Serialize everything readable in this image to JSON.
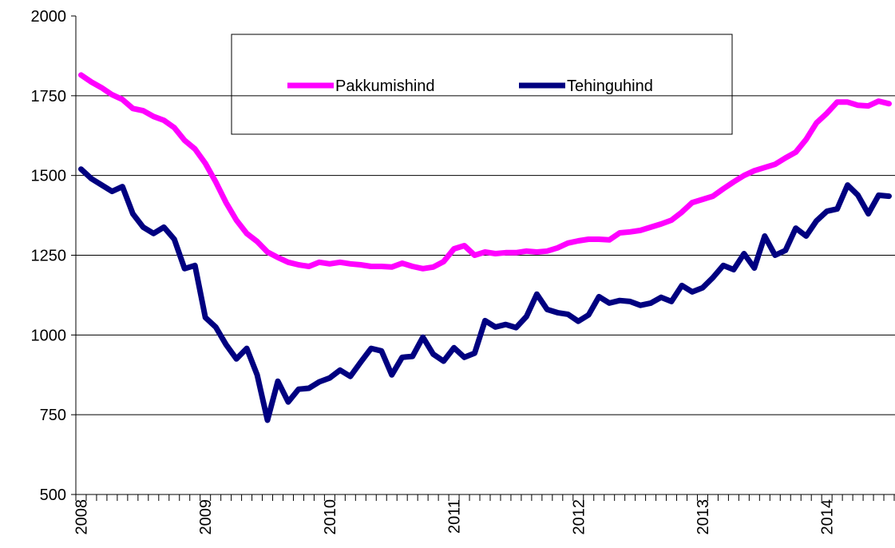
{
  "chart_data": {
    "type": "line",
    "categories": [
      "2008",
      null,
      null,
      null,
      null,
      null,
      null,
      null,
      null,
      null,
      null,
      null,
      "2009",
      null,
      null,
      null,
      null,
      null,
      null,
      null,
      null,
      null,
      null,
      null,
      "2010",
      null,
      null,
      null,
      null,
      null,
      null,
      null,
      null,
      null,
      null,
      null,
      "2011",
      null,
      null,
      null,
      null,
      null,
      null,
      null,
      null,
      null,
      null,
      null,
      "2012",
      null,
      null,
      null,
      null,
      null,
      null,
      null,
      null,
      null,
      null,
      null,
      "2013",
      null,
      null,
      null,
      null,
      null,
      null,
      null,
      null,
      null,
      null,
      null,
      "2014",
      null,
      null,
      null,
      null,
      null,
      null
    ],
    "series": [
      {
        "name": "Pakkumishind",
        "color": "#ff00ff",
        "values": [
          1815,
          1793,
          1775,
          1753,
          1738,
          1710,
          1703,
          1685,
          1673,
          1650,
          1610,
          1583,
          1538,
          1480,
          1415,
          1360,
          1318,
          1293,
          1260,
          1243,
          1228,
          1220,
          1215,
          1228,
          1223,
          1228,
          1223,
          1220,
          1215,
          1215,
          1213,
          1225,
          1215,
          1208,
          1213,
          1230,
          1270,
          1280,
          1250,
          1260,
          1255,
          1258,
          1258,
          1263,
          1260,
          1263,
          1273,
          1288,
          1295,
          1300,
          1300,
          1298,
          1320,
          1323,
          1328,
          1338,
          1348,
          1360,
          1385,
          1415,
          1425,
          1435,
          1458,
          1480,
          1500,
          1515,
          1525,
          1535,
          1555,
          1573,
          1613,
          1665,
          1695,
          1730,
          1730,
          1720,
          1718,
          1733,
          1725
        ]
      },
      {
        "name": "Tehinguhind",
        "color": "#000080",
        "values": [
          1520,
          1490,
          1470,
          1450,
          1465,
          1380,
          1338,
          1318,
          1338,
          1300,
          1208,
          1218,
          1055,
          1025,
          970,
          925,
          958,
          875,
          733,
          855,
          790,
          830,
          833,
          853,
          865,
          890,
          870,
          915,
          958,
          950,
          875,
          930,
          933,
          993,
          940,
          918,
          960,
          930,
          943,
          1045,
          1025,
          1033,
          1023,
          1058,
          1128,
          1080,
          1070,
          1065,
          1043,
          1063,
          1120,
          1100,
          1108,
          1105,
          1093,
          1100,
          1118,
          1105,
          1155,
          1135,
          1148,
          1180,
          1218,
          1205,
          1255,
          1210,
          1310,
          1250,
          1265,
          1335,
          1310,
          1358,
          1388,
          1395,
          1470,
          1438,
          1380,
          1438,
          1435
        ]
      }
    ],
    "ylim": [
      500,
      2000
    ],
    "yticks": [
      500,
      750,
      1000,
      1250,
      1500,
      1750,
      2000
    ],
    "grid": true
  }
}
